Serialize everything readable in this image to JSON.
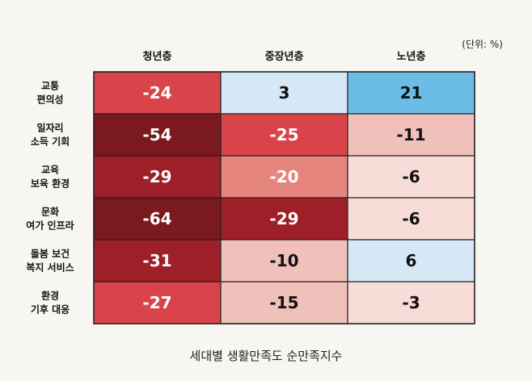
{
  "unit_label": "(단위: %)",
  "caption": "세대별 생활만족도 순만족지수",
  "chart_data": {
    "type": "heatmap",
    "columns": [
      "청년층",
      "중장년층",
      "노년층"
    ],
    "rows": [
      [
        "교통",
        "편의성"
      ],
      [
        "일자리",
        "소득 기회"
      ],
      [
        "교육",
        "보육 환경"
      ],
      [
        "문화",
        "여가 인프라"
      ],
      [
        "돌봄 보건",
        "복지 서비스"
      ],
      [
        "환경",
        "기후 대응"
      ]
    ],
    "values": [
      [
        -24,
        3,
        21
      ],
      [
        -54,
        -25,
        -11
      ],
      [
        -29,
        -20,
        -6
      ],
      [
        -64,
        -29,
        -6
      ],
      [
        -31,
        -10,
        6
      ],
      [
        -27,
        -15,
        -3
      ]
    ],
    "colors": {
      "border": "#222222",
      "strong_negative": "#7a1a1f",
      "negative": "#9e1f27",
      "moderate_negative": "#d9444a",
      "mild_negative": "#e5857e",
      "light_negative": "#f0c1ba",
      "faint_negative": "#f7dcd8",
      "light_positive": "#d6e8f6",
      "positive": "#6bbde6"
    }
  }
}
